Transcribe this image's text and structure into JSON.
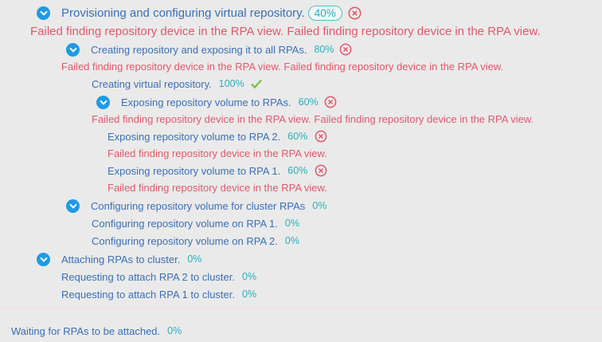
{
  "items": {
    "provisioning": {
      "label": "Provisioning and configuring virtual repository.",
      "progress": "40%",
      "error": "Failed finding repository device in the RPA view. Failed finding repository device in the RPA view."
    },
    "creating_exposing": {
      "label": "Creating repository and exposing it to all RPAs.",
      "progress": "80%",
      "error": "Failed finding repository device in the RPA view. Failed finding repository device in the RPA view."
    },
    "creating_virtual": {
      "label": "Creating virtual repository.",
      "progress": "100%"
    },
    "exposing_volume": {
      "label": "Exposing repository volume to RPAs.",
      "progress": "60%",
      "error": "Failed finding repository device in the RPA view. Failed finding repository device in the RPA view."
    },
    "exposing_rpa2": {
      "label": "Exposing repository volume to RPA 2.",
      "progress": "60%",
      "error": "Failed finding repository device in the RPA view."
    },
    "exposing_rpa1": {
      "label": "Exposing repository volume to RPA 1.",
      "progress": "60%",
      "error": "Failed finding repository device in the RPA view."
    },
    "configuring_cluster": {
      "label": "Configuring repository volume for cluster RPAs",
      "progress": "0%"
    },
    "configuring_rpa1": {
      "label": "Configuring repository volume on RPA 1.",
      "progress": "0%"
    },
    "configuring_rpa2": {
      "label": "Configuring repository volume on RPA 2.",
      "progress": "0%"
    },
    "attaching": {
      "label": "Attaching RPAs to cluster.",
      "progress": "0%"
    },
    "requesting_rpa2": {
      "label": "Requesting to attach RPA 2 to cluster.",
      "progress": "0%"
    },
    "requesting_rpa1": {
      "label": "Requesting to attach RPA 1 to cluster.",
      "progress": "0%"
    },
    "waiting": {
      "label": "Waiting for RPAs to be attached.",
      "progress": "0%"
    }
  },
  "colors": {
    "label": "#3b6fb6",
    "progress": "#2ab0b6",
    "error": "#e0586a",
    "expand_icon": "#1e9ae6",
    "success": "#7cc04a",
    "background": "#eaeaea"
  },
  "icons": {
    "expand": "chevron-down-icon",
    "failed": "error-circle-icon",
    "done": "checkmark-icon"
  }
}
